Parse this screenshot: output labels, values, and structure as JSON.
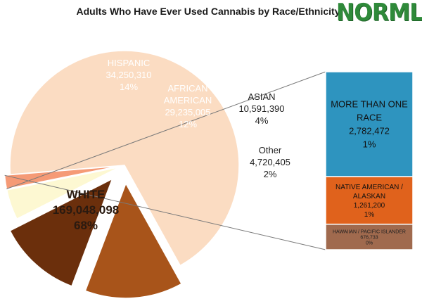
{
  "logo_text": "NORML",
  "chart_data": {
    "type": "pie",
    "title": "Adults Who Have Ever Used Cannabis by Race/Ethnicity",
    "slices": [
      {
        "label": "WHITE",
        "value": 169048098,
        "value_text": "169,048,098",
        "percent_text": "68%",
        "color": "#fbdcc2"
      },
      {
        "label": "HISPANIC",
        "value": 34250310,
        "value_text": "34,250,310",
        "percent_text": "14%",
        "color": "#a8541a"
      },
      {
        "label": "AFRICAN AMERICAN",
        "value": 29235005,
        "value_text": "29,235,005",
        "percent_text": "12%",
        "color": "#6b2f0c"
      },
      {
        "label": "ASIAN",
        "value": 10591390,
        "value_text": "10,591,390",
        "percent_text": "4%",
        "color": "#fdf8d2"
      },
      {
        "label": "Other",
        "value": 4720405,
        "value_text": "4,720,405",
        "percent_text": "2%",
        "color": "#f59a76"
      }
    ],
    "other_breakdown": {
      "type": "stacked_bar",
      "segments": [
        {
          "label": "MORE THAN ONE RACE",
          "value": 2782472,
          "value_text": "2,782,472",
          "percent_text": "1%",
          "color": "#2e94bf"
        },
        {
          "label": "NATIVE AMERICAN / ALASKAN",
          "value": 1261200,
          "value_text": "1,261,200",
          "percent_text": "1%",
          "color": "#e0621c"
        },
        {
          "label": "HAWAIIAN / PACIFIC ISLANDER",
          "value": 676733,
          "value_text": "676,733",
          "percent_text": "0%",
          "color": "#a06a4e"
        }
      ]
    }
  }
}
